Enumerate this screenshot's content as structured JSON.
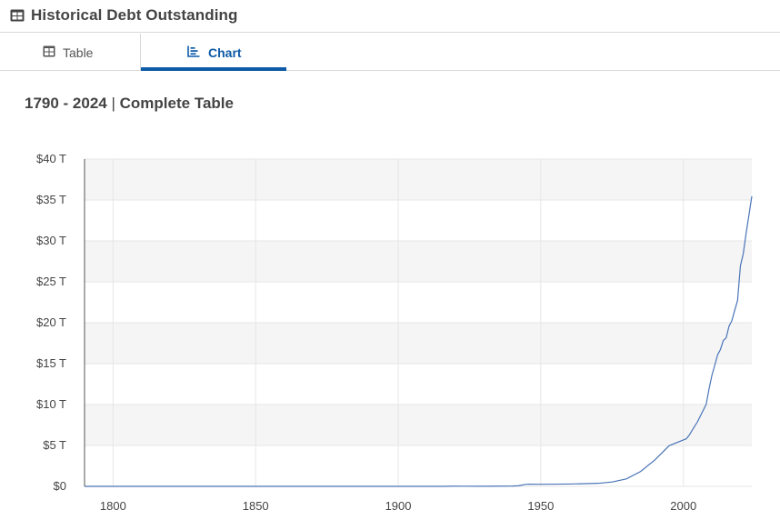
{
  "header": {
    "title": "Historical Debt Outstanding",
    "icon": "table-icon"
  },
  "tabs": [
    {
      "label": "Table",
      "icon": "table-icon",
      "active": false
    },
    {
      "label": "Chart",
      "icon": "chart-icon",
      "active": true
    }
  ],
  "subtitle": {
    "range": "1790 - 2024",
    "separator": "|",
    "label": "Complete Table"
  },
  "colors": {
    "accent": "#0d5aa7",
    "line": "#4a74b8",
    "band": "#f5f5f5",
    "grid": "#e6e6e6"
  },
  "chart_data": {
    "type": "line",
    "title": "",
    "xlabel": "",
    "ylabel": "",
    "xlim": [
      1790,
      2024
    ],
    "ylim": [
      0,
      40
    ],
    "x_ticks": [
      {
        "value": 1800,
        "label": "1800"
      },
      {
        "value": 1850,
        "label": "1850"
      },
      {
        "value": 1900,
        "label": "1900"
      },
      {
        "value": 1950,
        "label": "1950"
      },
      {
        "value": 2000,
        "label": "2000"
      }
    ],
    "y_ticks": [
      {
        "value": 0,
        "label": "$0"
      },
      {
        "value": 5,
        "label": "$5 T"
      },
      {
        "value": 10,
        "label": "$10 T"
      },
      {
        "value": 15,
        "label": "$15 T"
      },
      {
        "value": 20,
        "label": "$20 T"
      },
      {
        "value": 25,
        "label": "$25 T"
      },
      {
        "value": 30,
        "label": "$30 T"
      },
      {
        "value": 35,
        "label": "$35 T"
      },
      {
        "value": 40,
        "label": "$40 T"
      }
    ],
    "grid": true,
    "series": [
      {
        "x": [
          1790,
          1800,
          1820,
          1840,
          1860,
          1866,
          1880,
          1900,
          1916,
          1919,
          1930,
          1940,
          1942,
          1945,
          1946,
          1950,
          1960,
          1970,
          1975,
          1980,
          1985,
          1990,
          1995,
          2000,
          2001,
          2002,
          2005,
          2008,
          2009,
          2010,
          2011,
          2012,
          2013,
          2014,
          2015,
          2016,
          2017,
          2018,
          2019,
          2020,
          2021,
          2022,
          2023,
          2024
        ],
        "values": [
          8e-05,
          8e-05,
          9e-05,
          4e-06,
          6e-05,
          0.0028,
          0.002,
          0.0012,
          0.0012,
          0.027,
          0.016,
          0.043,
          0.072,
          0.258,
          0.269,
          0.257,
          0.286,
          0.371,
          0.533,
          0.908,
          1.82,
          3.23,
          4.97,
          5.67,
          5.81,
          6.23,
          7.93,
          10.02,
          11.91,
          13.56,
          14.79,
          16.07,
          16.74,
          17.82,
          18.15,
          19.57,
          20.24,
          21.52,
          22.72,
          26.95,
          28.43,
          30.93,
          33.17,
          35.46
        ]
      }
    ]
  }
}
